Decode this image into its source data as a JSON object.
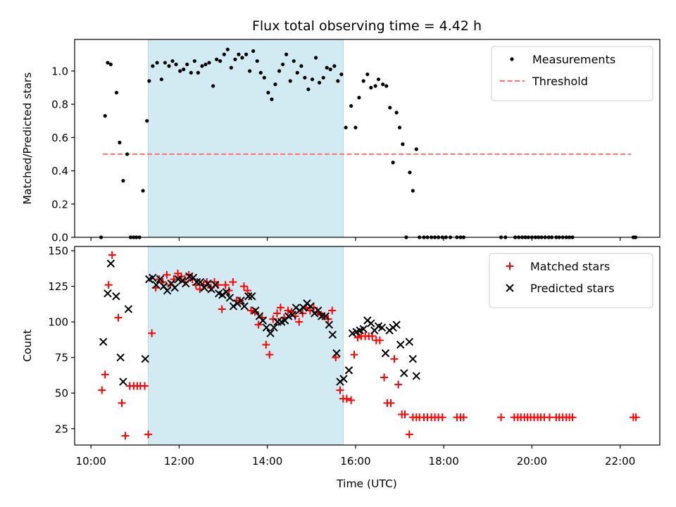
{
  "chart_data": {
    "title": "Flux total observing time = 4.42 h",
    "xlabel": "Time (UTC)",
    "x_unit": "hours UTC",
    "x_range": [
      9.63,
      22.9
    ],
    "x_ticks": [
      10,
      12,
      14,
      16,
      18,
      20,
      22
    ],
    "x_tick_labels": [
      "10:00",
      "12:00",
      "14:00",
      "16:00",
      "18:00",
      "20:00",
      "22:00"
    ],
    "observing_window": [
      11.3,
      15.72
    ],
    "observing_window_color": "#add8e6",
    "panels": [
      {
        "type": "scatter",
        "ylabel": "Matched/Predicted stars",
        "ylim": [
          0,
          1.19
        ],
        "y_ticks": [
          0.0,
          0.2,
          0.4,
          0.6,
          0.8,
          1.0
        ],
        "y_tick_labels": [
          "0.0",
          "0.2",
          "0.4",
          "0.6",
          "0.8",
          "1.0"
        ],
        "legend_position": "top-right",
        "threshold": {
          "name": "Threshold",
          "value": 0.5,
          "x_range": [
            10.27,
            22.25
          ],
          "color": "#ff7070"
        },
        "series": [
          {
            "name": "Measurements",
            "marker": "dot",
            "color": "#000000",
            "x": [
              10.23,
              10.32,
              10.38,
              10.45,
              10.58,
              10.65,
              10.73,
              10.82,
              10.9,
              10.97,
              11.03,
              11.1,
              11.18,
              11.27,
              11.32,
              11.4,
              11.5,
              11.6,
              11.68,
              11.77,
              11.85,
              11.93,
              12.02,
              12.1,
              12.18,
              12.27,
              12.35,
              12.43,
              12.52,
              12.6,
              12.68,
              12.77,
              12.85,
              12.93,
              13.02,
              13.1,
              13.18,
              13.27,
              13.35,
              13.43,
              13.52,
              13.6,
              13.68,
              13.77,
              13.85,
              13.93,
              14.02,
              14.1,
              14.18,
              14.27,
              14.35,
              14.43,
              14.52,
              14.6,
              14.68,
              14.77,
              14.85,
              14.93,
              15.02,
              15.1,
              15.18,
              15.27,
              15.35,
              15.43,
              15.52,
              15.6,
              15.68,
              15.78,
              15.9,
              16.0,
              16.08,
              16.18,
              16.27,
              16.35,
              16.45,
              16.52,
              16.62,
              16.7,
              16.78,
              16.85,
              16.93,
              17.0,
              17.07,
              17.15,
              17.23,
              17.3,
              17.38,
              17.45,
              17.55,
              17.63,
              17.72,
              17.8,
              17.88,
              17.97,
              18.05,
              18.15,
              18.3,
              18.38,
              18.45,
              19.3,
              19.4,
              19.62,
              19.7,
              19.78,
              19.85,
              19.92,
              20.0,
              20.08,
              20.15,
              20.22,
              20.3,
              20.38,
              20.45,
              20.55,
              20.62,
              20.7,
              20.78,
              20.85,
              20.92,
              22.3,
              22.35
            ],
            "y": [
              0.0,
              0.73,
              1.05,
              1.04,
              0.87,
              0.57,
              0.34,
              0.5,
              0.0,
              0.0,
              0.0,
              0.0,
              0.28,
              0.7,
              0.94,
              1.03,
              1.05,
              0.95,
              1.05,
              1.03,
              1.06,
              1.04,
              1.0,
              1.01,
              1.04,
              0.99,
              1.06,
              0.99,
              1.03,
              1.04,
              1.05,
              0.91,
              1.07,
              1.06,
              1.1,
              1.13,
              1.02,
              1.07,
              1.1,
              1.08,
              1.1,
              1.0,
              1.12,
              1.06,
              0.99,
              0.96,
              0.87,
              0.83,
              0.92,
              1.0,
              1.04,
              1.1,
              0.94,
              1.06,
              0.99,
              1.03,
              0.96,
              0.89,
              0.95,
              1.08,
              0.93,
              0.96,
              1.02,
              1.01,
              1.03,
              0.94,
              0.98,
              0.66,
              0.79,
              0.66,
              0.84,
              0.94,
              0.98,
              0.9,
              0.91,
              0.95,
              0.92,
              0.91,
              0.78,
              0.45,
              0.75,
              0.66,
              0.56,
              0.0,
              0.39,
              0.28,
              0.53,
              0.0,
              0.0,
              0.0,
              0.0,
              0.0,
              0.0,
              0.0,
              0.0,
              0.0,
              0.0,
              0.0,
              0.0,
              0.0,
              0.0,
              0.0,
              0.0,
              0.0,
              0.0,
              0.0,
              0.0,
              0.0,
              0.0,
              0.0,
              0.0,
              0.0,
              0.0,
              0.0,
              0.0,
              0.0,
              0.0,
              0.0,
              0.0,
              0.0,
              0.0
            ]
          }
        ]
      },
      {
        "type": "scatter",
        "ylabel": "Count",
        "ylim": [
          13.5,
          153
        ],
        "y_ticks": [
          25,
          50,
          75,
          100,
          125,
          150
        ],
        "y_tick_labels": [
          "25",
          "50",
          "75",
          "100",
          "125",
          "150"
        ],
        "legend_position": "top-right",
        "series": [
          {
            "name": "Matched stars",
            "marker": "plus",
            "color": "#ff0000",
            "x": [
              10.25,
              10.32,
              10.4,
              10.48,
              10.62,
              10.7,
              10.78,
              10.88,
              10.97,
              11.05,
              11.12,
              11.22,
              11.3,
              11.38,
              11.47,
              11.55,
              11.63,
              11.72,
              11.8,
              11.88,
              11.97,
              12.05,
              12.13,
              12.22,
              12.3,
              12.38,
              12.47,
              12.55,
              12.63,
              12.72,
              12.8,
              12.88,
              12.97,
              13.05,
              13.13,
              13.22,
              13.3,
              13.38,
              13.47,
              13.55,
              13.63,
              13.72,
              13.8,
              13.88,
              13.97,
              14.05,
              14.13,
              14.22,
              14.3,
              14.38,
              14.47,
              14.55,
              14.63,
              14.72,
              14.8,
              14.88,
              14.97,
              15.05,
              15.13,
              15.22,
              15.3,
              15.38,
              15.47,
              15.55,
              15.65,
              15.72,
              15.8,
              15.9,
              15.97,
              16.05,
              16.13,
              16.22,
              16.3,
              16.38,
              16.47,
              16.55,
              16.65,
              16.72,
              16.8,
              16.88,
              16.97,
              17.05,
              17.12,
              17.22,
              17.3,
              17.38,
              17.45,
              17.55,
              17.63,
              17.72,
              17.8,
              17.88,
              17.97,
              18.3,
              18.38,
              18.45,
              19.3,
              19.6,
              19.68,
              19.75,
              19.83,
              19.9,
              19.97,
              20.05,
              20.13,
              20.2,
              20.28,
              20.4,
              20.55,
              20.62,
              20.7,
              20.78,
              20.85,
              20.92,
              22.3,
              22.36
            ],
            "y": [
              52,
              63,
              126,
              147,
              103,
              43,
              20,
              55,
              55,
              55,
              55,
              55,
              21,
              92,
              124,
              130,
              128,
              133,
              126,
              130,
              134,
              132,
              128,
              133,
              130,
              126,
              123,
              126,
              128,
              124,
              128,
              126,
              109,
              126,
              122,
              128,
              115,
              115,
              125,
              122,
              108,
              107,
              98,
              103,
              84,
              77,
              102,
              106,
              110,
              103,
              108,
              107,
              104,
              100,
              106,
              110,
              108,
              110,
              107,
              105,
              104,
              102,
              108,
              75,
              52,
              46,
              46,
              45,
              77,
              89,
              90,
              90,
              90,
              90,
              87,
              87,
              61,
              43,
              43,
              74,
              56,
              35,
              35,
              21,
              33,
              33,
              33,
              33,
              33,
              33,
              33,
              33,
              33,
              33,
              33,
              33,
              33,
              33,
              33,
              33,
              33,
              33,
              33,
              33,
              33,
              33,
              33,
              33,
              33,
              33,
              33,
              33,
              33,
              33,
              33,
              33
            ]
          },
          {
            "name": "Predicted stars",
            "marker": "x",
            "color": "#000000",
            "x": [
              10.28,
              10.38,
              10.45,
              10.57,
              10.67,
              10.73,
              10.85,
              11.23,
              11.32,
              11.4,
              11.48,
              11.57,
              11.65,
              11.73,
              11.82,
              11.9,
              11.98,
              12.07,
              12.15,
              12.23,
              12.32,
              12.4,
              12.48,
              12.57,
              12.65,
              12.73,
              12.82,
              12.9,
              12.98,
              13.07,
              13.15,
              13.23,
              13.32,
              13.4,
              13.48,
              13.57,
              13.65,
              13.73,
              13.82,
              13.9,
              13.98,
              14.07,
              14.15,
              14.23,
              14.32,
              14.4,
              14.48,
              14.57,
              14.65,
              14.73,
              14.82,
              14.9,
              14.98,
              15.07,
              15.15,
              15.23,
              15.32,
              15.4,
              15.48,
              15.57,
              15.65,
              15.73,
              15.85,
              15.93,
              16.02,
              16.1,
              16.18,
              16.27,
              16.35,
              16.43,
              16.52,
              16.6,
              16.68,
              16.77,
              16.85,
              16.93,
              17.02,
              17.1,
              17.22,
              17.3,
              17.38
            ],
            "y": [
              86,
              120,
              141,
              118,
              75,
              58,
              109,
              74,
              130,
              131,
              126,
              130,
              125,
              122,
              127,
              124,
              130,
              129,
              127,
              132,
              131,
              128,
              128,
              124,
              127,
              123,
              126,
              120,
              119,
              121,
              117,
              111,
              113,
              115,
              111,
              118,
              118,
              108,
              104,
              101,
              96,
              92,
              96,
              100,
              100,
              101,
              104,
              105,
              110,
              108,
              110,
              113,
              111,
              106,
              108,
              104,
              104,
              98,
              91,
              78,
              58,
              60,
              66,
              92,
              93,
              94,
              95,
              101,
              99,
              94,
              97,
              96,
              78,
              94,
              96,
              98,
              84,
              64,
              86,
              74,
              62
            ]
          }
        ]
      }
    ]
  }
}
